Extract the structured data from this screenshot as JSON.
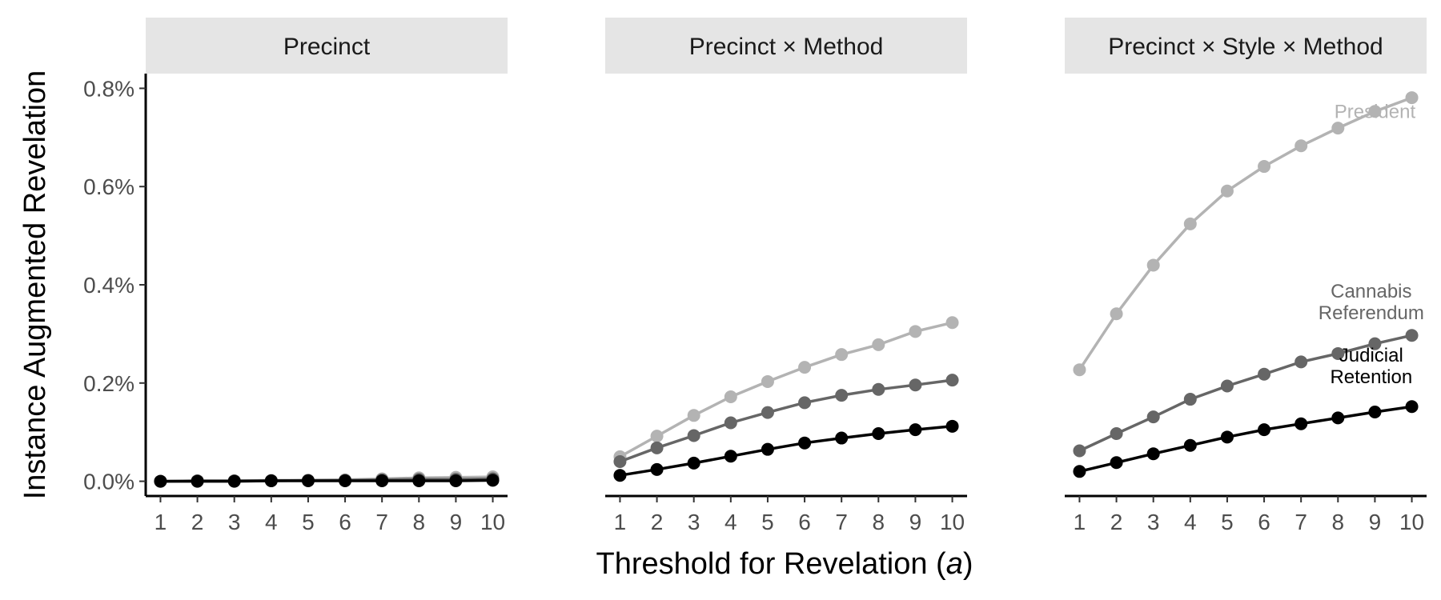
{
  "chart_data": {
    "type": "line",
    "ylabel": "Instance Augmented Revelation",
    "xlabel_prefix": "Threshold for Revelation (",
    "xlabel_var": "a",
    "xlabel_suffix": ")",
    "x": [
      1,
      2,
      3,
      4,
      5,
      6,
      7,
      8,
      9,
      10
    ],
    "x_tick_labels": [
      "1",
      "2",
      "3",
      "4",
      "5",
      "6",
      "7",
      "8",
      "9",
      "10"
    ],
    "y_ticks": [
      0,
      0.2,
      0.4,
      0.6,
      0.8
    ],
    "y_tick_labels": [
      "0.0%",
      "0.2%",
      "0.4%",
      "0.6%",
      "0.8%"
    ],
    "ylim": [
      -0.03,
      0.83
    ],
    "xlim": [
      0.6,
      10.4
    ],
    "colors": {
      "President": "#b3b3b3",
      "Cannabis Referendum": "#666666",
      "Judicial Retention": "#000000"
    },
    "panels": [
      {
        "title": "Precinct",
        "series": [
          {
            "name": "President",
            "values": [
              0.0,
              0.001,
              0.001,
              0.002,
              0.002,
              0.003,
              0.005,
              0.007,
              0.008,
              0.009
            ]
          },
          {
            "name": "Cannabis Referendum",
            "values": [
              0.0,
              0.001,
              0.001,
              0.001,
              0.002,
              0.002,
              0.003,
              0.004,
              0.004,
              0.005
            ]
          },
          {
            "name": "Judicial Retention",
            "values": [
              0.0,
              0.0,
              0.0,
              0.001,
              0.001,
              0.001,
              0.001,
              0.001,
              0.001,
              0.002
            ]
          }
        ],
        "labels": []
      },
      {
        "title": "Precinct × Method",
        "series": [
          {
            "name": "President",
            "values": [
              0.05,
              0.092,
              0.134,
              0.172,
              0.203,
              0.232,
              0.258,
              0.278,
              0.305,
              0.323
            ]
          },
          {
            "name": "Cannabis Referendum",
            "values": [
              0.04,
              0.068,
              0.093,
              0.119,
              0.14,
              0.16,
              0.175,
              0.187,
              0.196,
              0.206
            ]
          },
          {
            "name": "Judicial Retention",
            "values": [
              0.012,
              0.024,
              0.037,
              0.051,
              0.065,
              0.078,
              0.088,
              0.097,
              0.105,
              0.112
            ]
          }
        ],
        "labels": []
      },
      {
        "title": "Precinct × Style × Method",
        "series": [
          {
            "name": "President",
            "values": [
              0.227,
              0.341,
              0.44,
              0.524,
              0.591,
              0.641,
              0.683,
              0.719,
              0.753,
              0.781
            ]
          },
          {
            "name": "Cannabis Referendum",
            "values": [
              0.062,
              0.097,
              0.131,
              0.167,
              0.194,
              0.218,
              0.243,
              0.26,
              0.28,
              0.297
            ]
          },
          {
            "name": "Judicial Retention",
            "values": [
              0.02,
              0.038,
              0.056,
              0.073,
              0.09,
              0.105,
              0.117,
              0.129,
              0.141,
              0.152
            ]
          }
        ],
        "labels": [
          {
            "series": "President",
            "lines": [
              "President"
            ],
            "anchor_x": 9.0,
            "anchor_y": 0.74
          },
          {
            "series": "Cannabis Referendum",
            "lines": [
              "Cannabis",
              "Referendum"
            ],
            "anchor_x": 8.9,
            "anchor_y": 0.33
          },
          {
            "series": "Judicial Retention",
            "lines": [
              "Judicial",
              "Retention"
            ],
            "anchor_x": 8.9,
            "anchor_y": 0.2
          }
        ]
      }
    ]
  }
}
